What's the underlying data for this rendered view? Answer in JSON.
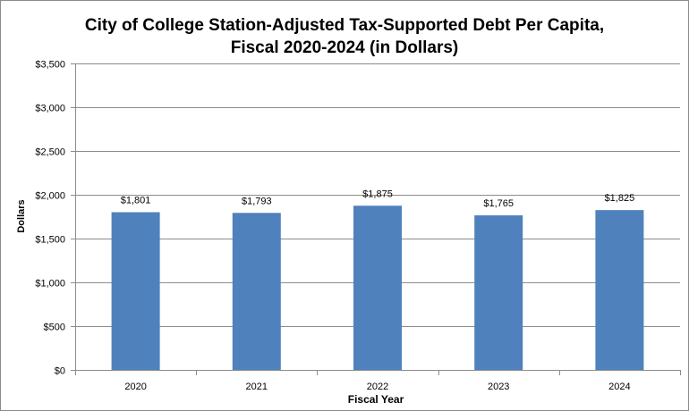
{
  "chart_data": {
    "type": "bar",
    "title_lines": [
      "City of College Station-Adjusted Tax-Supported Debt Per Capita,",
      "Fiscal 2020-2024 (in Dollars)"
    ],
    "xlabel": "Fiscal Year",
    "ylabel": "Dollars",
    "categories": [
      "2020",
      "2021",
      "2022",
      "2023",
      "2024"
    ],
    "values": [
      1801,
      1793,
      1875,
      1765,
      1825
    ],
    "data_labels": [
      "$1,801",
      "$1,793",
      "$1,875",
      "$1,765",
      "$1,825"
    ],
    "ylim": [
      0,
      3500
    ],
    "yticks": [
      0,
      500,
      1000,
      1500,
      2000,
      2500,
      3000,
      3500
    ],
    "ytick_labels": [
      "$0",
      "$500",
      "$1,000",
      "$1,500",
      "$2,000",
      "$2,500",
      "$3,000",
      "$3,500"
    ],
    "grid": true,
    "legend": "none",
    "bar_color": "#4f81bd",
    "grid_color": "#8c8c8c"
  }
}
